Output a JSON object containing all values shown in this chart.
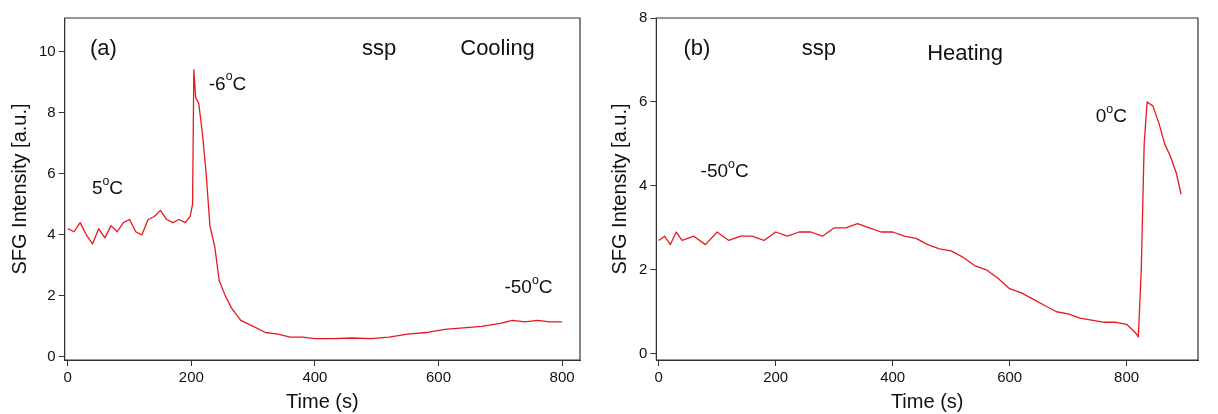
{
  "chart_data": [
    {
      "type": "line",
      "title": "(a)",
      "xlabel": "Time (s)",
      "ylabel": "SFG Intensity [a.u.]",
      "x": [
        0,
        10,
        20,
        30,
        40,
        50,
        60,
        70,
        80,
        90,
        100,
        110,
        120,
        130,
        140,
        150,
        160,
        170,
        180,
        190,
        198,
        202,
        204,
        207,
        212,
        218,
        224,
        230,
        238,
        245,
        255,
        265,
        280,
        300,
        320,
        340,
        360,
        380,
        400,
        430,
        460,
        490,
        520,
        550,
        580,
        610,
        640,
        670,
        700,
        720,
        740,
        760,
        780,
        800
      ],
      "series": [
        {
          "color": "#e8191e",
          "values": [
            4.2,
            4.1,
            4.4,
            4.0,
            3.7,
            4.2,
            3.9,
            4.3,
            4.1,
            4.4,
            4.5,
            4.1,
            4.0,
            4.5,
            4.6,
            4.8,
            4.5,
            4.4,
            4.5,
            4.4,
            4.6,
            5.0,
            9.4,
            8.5,
            8.3,
            7.3,
            6.0,
            4.3,
            3.6,
            2.5,
            2.0,
            1.6,
            1.2,
            1.0,
            0.8,
            0.75,
            0.65,
            0.65,
            0.6,
            0.6,
            0.62,
            0.6,
            0.65,
            0.75,
            0.8,
            0.9,
            0.95,
            1.0,
            1.1,
            1.2,
            1.15,
            1.2,
            1.15,
            1.15
          ]
        }
      ],
      "xlim": [
        -5,
        829
      ],
      "ylim": [
        -0.1,
        11.1
      ],
      "xticks": [
        0,
        200,
        400,
        600,
        800
      ],
      "yticks": [
        0,
        2,
        4,
        6,
        8,
        10
      ],
      "grid": false,
      "legend": false,
      "marker": "none",
      "line_style": "solid",
      "annotations": [
        "ssp",
        "Cooling",
        "5$^{o}$C",
        "-6$^{o}$C",
        "-50$^{o}$C"
      ]
    },
    {
      "type": "line",
      "title": "(b)",
      "xlabel": "Time (s)",
      "ylabel": "SFG Intensity [a.u.]",
      "x": [
        0,
        10,
        20,
        30,
        40,
        60,
        80,
        100,
        120,
        140,
        160,
        180,
        200,
        220,
        240,
        260,
        280,
        300,
        320,
        340,
        360,
        380,
        400,
        420,
        440,
        460,
        480,
        500,
        520,
        540,
        560,
        580,
        600,
        620,
        640,
        660,
        680,
        700,
        720,
        740,
        760,
        780,
        800,
        815,
        820,
        825,
        830,
        835,
        845,
        855,
        865,
        875,
        885,
        893
      ],
      "series": [
        {
          "color": "#e8191e",
          "values": [
            2.7,
            2.8,
            2.6,
            2.9,
            2.7,
            2.8,
            2.6,
            2.9,
            2.7,
            2.8,
            2.8,
            2.7,
            2.9,
            2.8,
            2.9,
            2.9,
            2.8,
            3.0,
            3.0,
            3.1,
            3.0,
            2.9,
            2.9,
            2.8,
            2.75,
            2.6,
            2.5,
            2.45,
            2.3,
            2.1,
            2.0,
            1.8,
            1.55,
            1.45,
            1.3,
            1.15,
            1.0,
            0.95,
            0.85,
            0.8,
            0.75,
            0.75,
            0.7,
            0.5,
            0.4,
            2.0,
            5.0,
            6.0,
            5.9,
            5.5,
            5.0,
            4.7,
            4.3,
            3.8
          ]
        }
      ],
      "xlim": [
        -4,
        922
      ],
      "ylim": [
        -0.15,
        8
      ],
      "xticks": [
        0,
        200,
        400,
        600,
        800
      ],
      "yticks": [
        0,
        2,
        4,
        6,
        8
      ],
      "grid": false,
      "legend": false,
      "marker": "none",
      "line_style": "solid",
      "annotations": [
        "ssp",
        "Heating",
        "-50$^{o}$C",
        "0$^{o}$C"
      ]
    }
  ]
}
